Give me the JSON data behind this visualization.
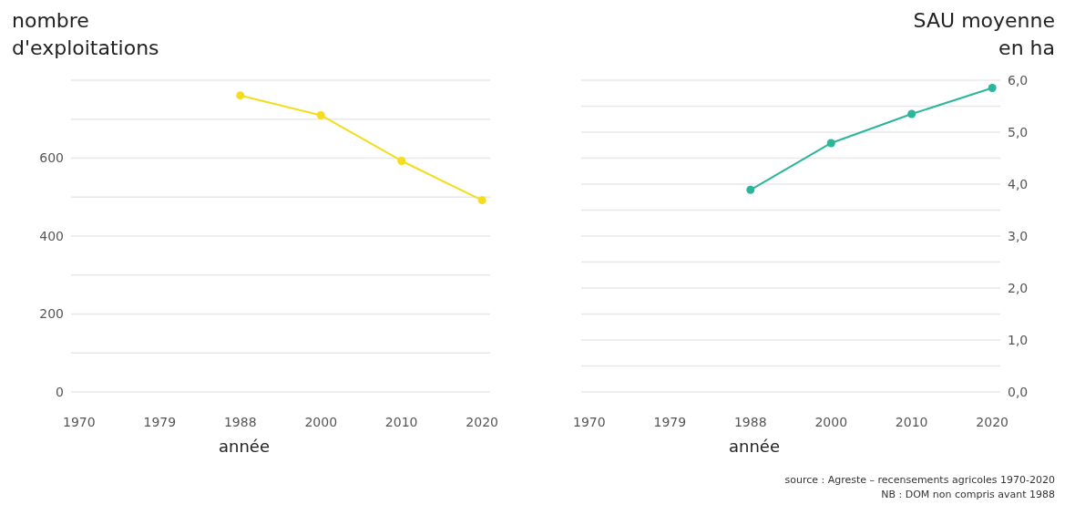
{
  "chart_data": [
    {
      "type": "line",
      "ylabel": "nombre\nd'exploitations",
      "xlabel": "année",
      "categories": [
        "1970",
        "1979",
        "1988",
        "2000",
        "2010",
        "2020"
      ],
      "series": [
        {
          "color": "#f3dd1c",
          "values": [
            null,
            null,
            761,
            710,
            593,
            492
          ]
        }
      ],
      "ylim": [
        0,
        800
      ],
      "yticks": [
        0,
        {
          "value": 100,
          "label": null
        },
        200,
        {
          "value": 300,
          "label": null
        },
        400,
        {
          "value": 500,
          "label": null
        },
        600,
        {
          "value": 700,
          "label": null
        },
        {
          "value": 800,
          "label": null
        }
      ],
      "grid": "y",
      "marker": "circle",
      "line_style": "solid"
    },
    {
      "type": "line",
      "y2label": "SAU moyenne\nen ha",
      "xlabel": "année",
      "categories": [
        "1970",
        "1979",
        "1988",
        "2000",
        "2010",
        "2020"
      ],
      "series": [
        {
          "color": "#2bb59a",
          "axis": "y2",
          "values": [
            null,
            null,
            3.89,
            4.79,
            5.35,
            5.85
          ]
        }
      ],
      "y2lim": [
        0,
        6.0
      ],
      "y2ticks": [
        {
          "value": 0,
          "label": "0,0"
        },
        {
          "value": 0.5,
          "label": null
        },
        {
          "value": 1,
          "label": "1,0"
        },
        {
          "value": 1.5,
          "label": null
        },
        {
          "value": 2,
          "label": "2,0"
        },
        {
          "value": 2.5,
          "label": null
        },
        {
          "value": 3,
          "label": "3,0"
        },
        {
          "value": 3.5,
          "label": null
        },
        {
          "value": 4,
          "label": "4,0"
        },
        {
          "value": 4.5,
          "label": null
        },
        {
          "value": 5,
          "label": "5,0"
        },
        {
          "value": 5.5,
          "label": null
        },
        {
          "value": 6,
          "label": "6,0"
        }
      ],
      "grid": "y",
      "marker": "circle",
      "line_style": "solid",
      "annotations": [
        "source : Agreste – recensements agricoles 1970-2020",
        "NB : DOM non compris avant 1988"
      ]
    }
  ]
}
